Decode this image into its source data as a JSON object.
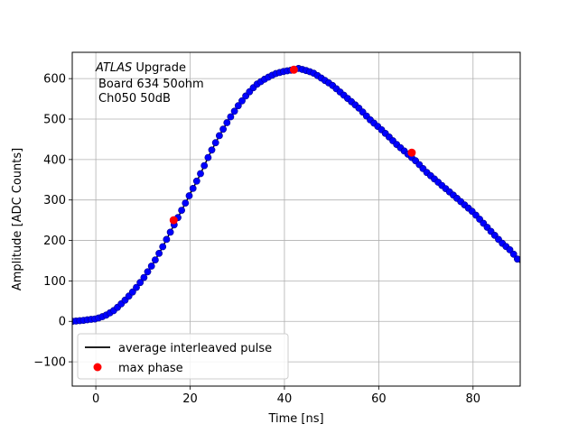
{
  "chart_data": {
    "type": "scatter",
    "xlabel": "Time [ns]",
    "ylabel": "Amplitude [ADC Counts]",
    "xlim": [
      -5,
      90
    ],
    "ylim": [
      -160,
      665
    ],
    "xticks": [
      0,
      20,
      40,
      60,
      80
    ],
    "yticks": [
      -100,
      0,
      100,
      200,
      300,
      400,
      500,
      600
    ],
    "grid": true,
    "legend_position": "lower-left",
    "annotation": {
      "line1_italic": "ATLAS",
      "line1_rest": " Upgrade",
      "line2": "Board 634 50ohm",
      "line3": "Ch050 50dB"
    },
    "series": [
      {
        "name": "average interleaved pulse",
        "color": "#000000",
        "marker_color": "#0000ff",
        "x": [
          -5,
          -3,
          -1,
          0,
          2,
          4,
          6,
          8,
          10,
          12,
          14,
          16,
          18,
          20,
          22,
          24,
          26,
          28,
          30,
          32,
          34,
          36,
          38,
          40,
          42,
          43,
          44,
          46,
          48,
          50,
          52,
          54,
          56,
          58,
          60,
          62,
          64,
          66,
          68,
          70,
          72,
          74,
          76,
          78,
          80,
          82,
          84,
          86,
          88,
          90
        ],
        "y": [
          0,
          2,
          5,
          6,
          14,
          28,
          50,
          75,
          105,
          140,
          180,
          225,
          270,
          315,
          360,
          410,
          455,
          495,
          530,
          560,
          585,
          600,
          612,
          618,
          622,
          625,
          622,
          615,
          600,
          585,
          565,
          545,
          525,
          500,
          480,
          458,
          435,
          415,
          395,
          370,
          350,
          330,
          310,
          290,
          270,
          245,
          220,
          195,
          175,
          145
        ]
      },
      {
        "name": "max phase",
        "color": "#ff0000",
        "x": [
          16.5,
          42,
          67
        ],
        "y": [
          250,
          622,
          417
        ]
      }
    ]
  }
}
